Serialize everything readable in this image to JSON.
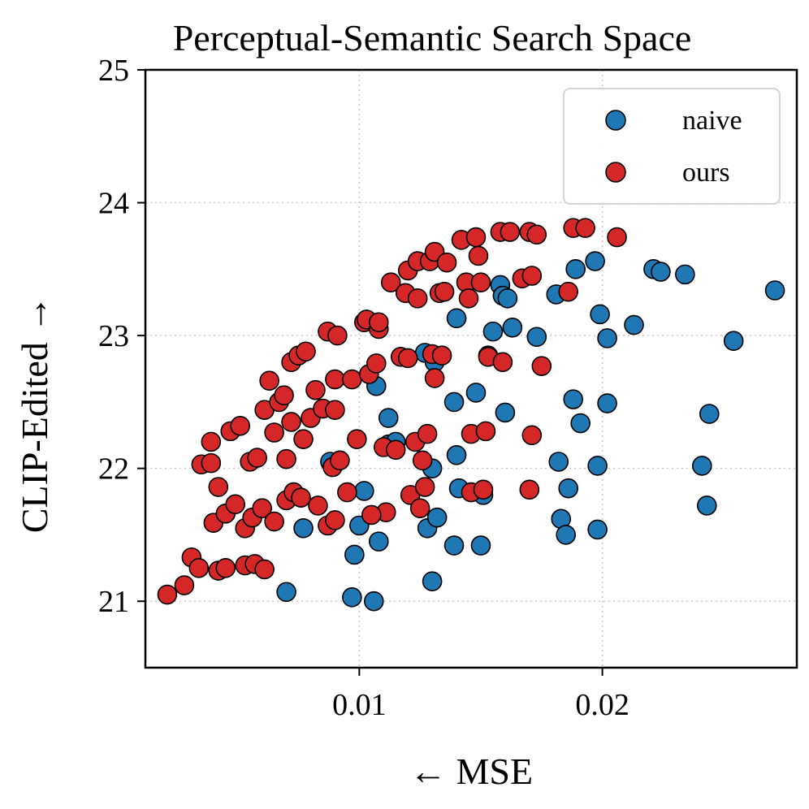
{
  "chart_data": {
    "type": "scatter",
    "title": "Perceptual-Semantic Search Space",
    "xlabel": "← MSE",
    "ylabel": "CLIP-Edited →",
    "xlim": [
      0.0012,
      0.028
    ],
    "ylim": [
      20.5,
      25.0
    ],
    "xticks": [
      0.01,
      0.02
    ],
    "xtick_labels": [
      "0.01",
      "0.02"
    ],
    "yticks": [
      21,
      22,
      23,
      24,
      25
    ],
    "ytick_labels": [
      "21",
      "22",
      "23",
      "24",
      "25"
    ],
    "grid": true,
    "legend_position": "top-right",
    "series": [
      {
        "name": "naive",
        "color": "#1f77b4",
        "points": [
          [
            0.007,
            21.07
          ],
          [
            0.0097,
            21.03
          ],
          [
            0.0106,
            21.0
          ],
          [
            0.0077,
            21.55
          ],
          [
            0.0098,
            21.35
          ],
          [
            0.0108,
            21.45
          ],
          [
            0.01,
            21.57
          ],
          [
            0.0102,
            21.83
          ],
          [
            0.0088,
            22.05
          ],
          [
            0.0112,
            22.18
          ],
          [
            0.0112,
            22.38
          ],
          [
            0.0107,
            22.62
          ],
          [
            0.0115,
            22.2
          ],
          [
            0.0128,
            21.55
          ],
          [
            0.0132,
            21.63
          ],
          [
            0.013,
            21.15
          ],
          [
            0.013,
            22.0
          ],
          [
            0.0127,
            22.87
          ],
          [
            0.0131,
            22.8
          ],
          [
            0.0139,
            21.42
          ],
          [
            0.0139,
            22.5
          ],
          [
            0.014,
            22.1
          ],
          [
            0.0141,
            21.85
          ],
          [
            0.014,
            23.13
          ],
          [
            0.0148,
            22.57
          ],
          [
            0.015,
            21.42
          ],
          [
            0.0151,
            21.8
          ],
          [
            0.0153,
            22.85
          ],
          [
            0.0155,
            23.03
          ],
          [
            0.0158,
            23.38
          ],
          [
            0.0159,
            23.3
          ],
          [
            0.016,
            22.42
          ],
          [
            0.0161,
            23.28
          ],
          [
            0.0163,
            23.06
          ],
          [
            0.0173,
            22.99
          ],
          [
            0.0181,
            23.31
          ],
          [
            0.0182,
            22.05
          ],
          [
            0.0183,
            21.62
          ],
          [
            0.0185,
            21.5
          ],
          [
            0.0186,
            21.85
          ],
          [
            0.0188,
            22.52
          ],
          [
            0.0189,
            23.5
          ],
          [
            0.0191,
            22.34
          ],
          [
            0.0197,
            23.56
          ],
          [
            0.0198,
            22.02
          ],
          [
            0.0198,
            21.54
          ],
          [
            0.0199,
            23.16
          ],
          [
            0.0202,
            22.98
          ],
          [
            0.0202,
            22.49
          ],
          [
            0.0213,
            23.08
          ],
          [
            0.0221,
            23.5
          ],
          [
            0.0224,
            23.48
          ],
          [
            0.0234,
            23.46
          ],
          [
            0.0241,
            22.02
          ],
          [
            0.0243,
            21.72
          ],
          [
            0.0244,
            22.41
          ],
          [
            0.0254,
            22.96
          ],
          [
            0.0271,
            23.34
          ]
        ]
      },
      {
        "name": "ours",
        "color": "#d62728",
        "points": [
          [
            0.0021,
            21.05
          ],
          [
            0.0028,
            21.12
          ],
          [
            0.0031,
            21.33
          ],
          [
            0.0034,
            21.25
          ],
          [
            0.0042,
            21.23
          ],
          [
            0.0045,
            21.25
          ],
          [
            0.0053,
            21.27
          ],
          [
            0.0057,
            21.28
          ],
          [
            0.0061,
            21.24
          ],
          [
            0.004,
            21.59
          ],
          [
            0.0045,
            21.66
          ],
          [
            0.0049,
            21.73
          ],
          [
            0.0053,
            21.55
          ],
          [
            0.0056,
            21.63
          ],
          [
            0.006,
            21.7
          ],
          [
            0.0065,
            21.6
          ],
          [
            0.007,
            21.76
          ],
          [
            0.0073,
            21.82
          ],
          [
            0.0076,
            21.78
          ],
          [
            0.0083,
            21.72
          ],
          [
            0.0087,
            21.57
          ],
          [
            0.009,
            21.61
          ],
          [
            0.0035,
            22.03
          ],
          [
            0.0039,
            22.04
          ],
          [
            0.0042,
            21.86
          ],
          [
            0.0039,
            22.2
          ],
          [
            0.0047,
            22.28
          ],
          [
            0.0051,
            22.32
          ],
          [
            0.0055,
            22.05
          ],
          [
            0.0058,
            22.08
          ],
          [
            0.0061,
            22.44
          ],
          [
            0.0065,
            22.27
          ],
          [
            0.0067,
            22.5
          ],
          [
            0.0069,
            22.55
          ],
          [
            0.007,
            22.07
          ],
          [
            0.0072,
            22.35
          ],
          [
            0.0077,
            22.22
          ],
          [
            0.008,
            22.38
          ],
          [
            0.0082,
            22.59
          ],
          [
            0.0085,
            22.45
          ],
          [
            0.009,
            22.44
          ],
          [
            0.0089,
            22.01
          ],
          [
            0.0092,
            22.06
          ],
          [
            0.0063,
            22.66
          ],
          [
            0.0072,
            22.8
          ],
          [
            0.0075,
            22.85
          ],
          [
            0.0078,
            22.88
          ],
          [
            0.0087,
            23.03
          ],
          [
            0.0091,
            23.0
          ],
          [
            0.009,
            22.67
          ],
          [
            0.0097,
            22.67
          ],
          [
            0.0099,
            22.22
          ],
          [
            0.0095,
            21.82
          ],
          [
            0.0102,
            23.1
          ],
          [
            0.0103,
            23.12
          ],
          [
            0.0104,
            22.71
          ],
          [
            0.0107,
            22.79
          ],
          [
            0.0108,
            23.05
          ],
          [
            0.0108,
            23.1
          ],
          [
            0.011,
            22.16
          ],
          [
            0.0111,
            21.67
          ],
          [
            0.0105,
            21.65
          ],
          [
            0.0113,
            23.4
          ],
          [
            0.0115,
            22.14
          ],
          [
            0.0117,
            22.84
          ],
          [
            0.0119,
            23.32
          ],
          [
            0.012,
            23.49
          ],
          [
            0.012,
            22.83
          ],
          [
            0.0121,
            21.8
          ],
          [
            0.0123,
            22.2
          ],
          [
            0.0124,
            23.56
          ],
          [
            0.0124,
            23.28
          ],
          [
            0.0125,
            21.7
          ],
          [
            0.0126,
            22.06
          ],
          [
            0.0127,
            21.86
          ],
          [
            0.0128,
            22.26
          ],
          [
            0.0129,
            23.56
          ],
          [
            0.013,
            22.86
          ],
          [
            0.0131,
            23.63
          ],
          [
            0.0131,
            22.68
          ],
          [
            0.0133,
            23.32
          ],
          [
            0.0134,
            22.85
          ],
          [
            0.0135,
            23.33
          ],
          [
            0.0136,
            23.55
          ],
          [
            0.0142,
            23.72
          ],
          [
            0.0144,
            23.4
          ],
          [
            0.0145,
            23.28
          ],
          [
            0.0146,
            22.26
          ],
          [
            0.0146,
            21.82
          ],
          [
            0.0148,
            23.74
          ],
          [
            0.0149,
            23.6
          ],
          [
            0.015,
            23.4
          ],
          [
            0.0151,
            21.84
          ],
          [
            0.0152,
            22.28
          ],
          [
            0.0153,
            22.84
          ],
          [
            0.0158,
            23.78
          ],
          [
            0.0159,
            22.8
          ],
          [
            0.0162,
            23.78
          ],
          [
            0.0167,
            23.43
          ],
          [
            0.017,
            23.78
          ],
          [
            0.0171,
            23.45
          ],
          [
            0.0171,
            22.25
          ],
          [
            0.017,
            21.84
          ],
          [
            0.0175,
            22.77
          ],
          [
            0.0173,
            23.76
          ],
          [
            0.0186,
            23.33
          ],
          [
            0.0188,
            23.81
          ],
          [
            0.0193,
            23.81
          ],
          [
            0.0206,
            23.74
          ]
        ]
      }
    ]
  }
}
